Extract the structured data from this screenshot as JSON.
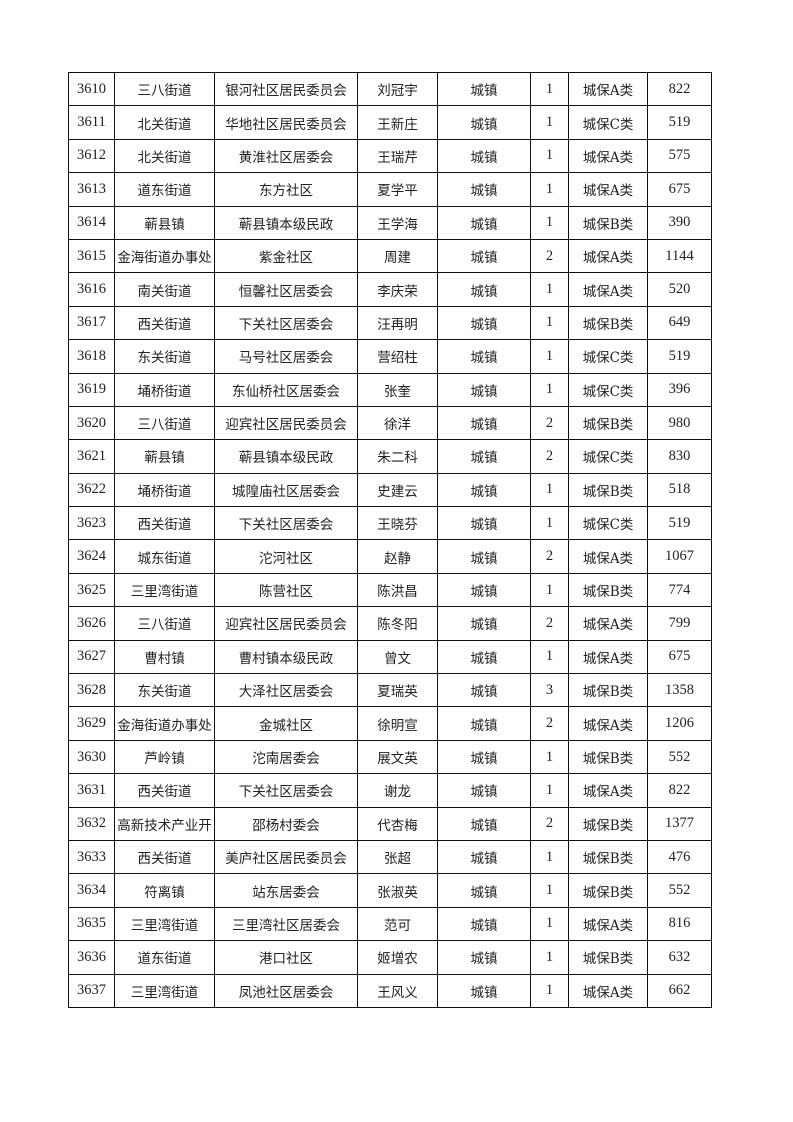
{
  "rows": [
    [
      "3610",
      "三八街道",
      "银河社区居民委员会",
      "刘冠宇",
      "城镇",
      "1",
      "城保A类",
      "822"
    ],
    [
      "3611",
      "北关街道",
      "华地社区居民委员会",
      "王新庄",
      "城镇",
      "1",
      "城保C类",
      "519"
    ],
    [
      "3612",
      "北关街道",
      "黄淮社区居委会",
      "王瑞芹",
      "城镇",
      "1",
      "城保A类",
      "575"
    ],
    [
      "3613",
      "道东街道",
      "东方社区",
      "夏学平",
      "城镇",
      "1",
      "城保A类",
      "675"
    ],
    [
      "3614",
      "蕲县镇",
      "蕲县镇本级民政",
      "王学海",
      "城镇",
      "1",
      "城保B类",
      "390"
    ],
    [
      "3615",
      "金海街道办事处",
      "紫金社区",
      "周建",
      "城镇",
      "2",
      "城保A类",
      "1144"
    ],
    [
      "3616",
      "南关街道",
      "恒馨社区居委会",
      "李庆荣",
      "城镇",
      "1",
      "城保A类",
      "520"
    ],
    [
      "3617",
      "西关街道",
      "下关社区居委会",
      "汪再明",
      "城镇",
      "1",
      "城保B类",
      "649"
    ],
    [
      "3618",
      "东关街道",
      "马号社区居委会",
      "营绍柱",
      "城镇",
      "1",
      "城保C类",
      "519"
    ],
    [
      "3619",
      "埇桥街道",
      "东仙桥社区居委会",
      "张奎",
      "城镇",
      "1",
      "城保C类",
      "396"
    ],
    [
      "3620",
      "三八街道",
      "迎宾社区居民委员会",
      "徐洋",
      "城镇",
      "2",
      "城保B类",
      "980"
    ],
    [
      "3621",
      "蕲县镇",
      "蕲县镇本级民政",
      "朱二科",
      "城镇",
      "2",
      "城保C类",
      "830"
    ],
    [
      "3622",
      "埇桥街道",
      "城隍庙社区居委会",
      "史建云",
      "城镇",
      "1",
      "城保B类",
      "518"
    ],
    [
      "3623",
      "西关街道",
      "下关社区居委会",
      "王晓芬",
      "城镇",
      "1",
      "城保C类",
      "519"
    ],
    [
      "3624",
      "城东街道",
      "沱河社区",
      "赵静",
      "城镇",
      "2",
      "城保A类",
      "1067"
    ],
    [
      "3625",
      "三里湾街道",
      "陈营社区",
      "陈洪昌",
      "城镇",
      "1",
      "城保B类",
      "774"
    ],
    [
      "3626",
      "三八街道",
      "迎宾社区居民委员会",
      "陈冬阳",
      "城镇",
      "2",
      "城保A类",
      "799"
    ],
    [
      "3627",
      "曹村镇",
      "曹村镇本级民政",
      "曾文",
      "城镇",
      "1",
      "城保A类",
      "675"
    ],
    [
      "3628",
      "东关街道",
      "大泽社区居委会",
      "夏瑞英",
      "城镇",
      "3",
      "城保B类",
      "1358"
    ],
    [
      "3629",
      "金海街道办事处",
      "金城社区",
      "徐明宣",
      "城镇",
      "2",
      "城保A类",
      "1206"
    ],
    [
      "3630",
      "芦岭镇",
      "沱南居委会",
      "展文英",
      "城镇",
      "1",
      "城保B类",
      "552"
    ],
    [
      "3631",
      "西关街道",
      "下关社区居委会",
      "谢龙",
      "城镇",
      "1",
      "城保A类",
      "822"
    ],
    [
      "3632",
      "高新技术产业开",
      "邵杨村委会",
      "代杏梅",
      "城镇",
      "2",
      "城保B类",
      "1377"
    ],
    [
      "3633",
      "西关街道",
      "美庐社区居民委员会",
      "张超",
      "城镇",
      "1",
      "城保B类",
      "476"
    ],
    [
      "3634",
      "符离镇",
      "站东居委会",
      "张淑英",
      "城镇",
      "1",
      "城保B类",
      "552"
    ],
    [
      "3635",
      "三里湾街道",
      "三里湾社区居委会",
      "范可",
      "城镇",
      "1",
      "城保A类",
      "816"
    ],
    [
      "3636",
      "道东街道",
      "港口社区",
      "姬增农",
      "城镇",
      "1",
      "城保B类",
      "632"
    ],
    [
      "3637",
      "三里湾街道",
      "凤池社区居委会",
      "王风义",
      "城镇",
      "1",
      "城保A类",
      "662"
    ]
  ]
}
